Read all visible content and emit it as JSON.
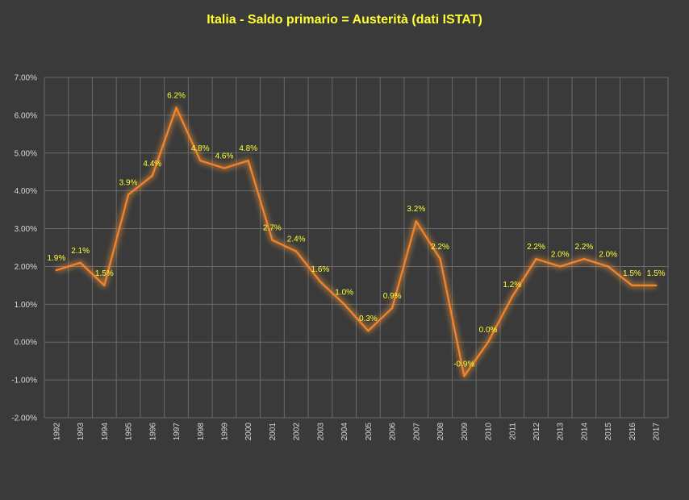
{
  "colors": {
    "background": "#3a3a3a",
    "title": "#ffff33",
    "line": "#f5842a",
    "glow": "#ff9a3c",
    "data_label": "#ffff33",
    "tick": "#d9d9d9",
    "grid": "#6a6a6a"
  },
  "chart_data": {
    "type": "line",
    "title": "Italia - Saldo primario = Austerità (dati ISTAT)",
    "xlabel": "",
    "ylabel": "",
    "x": [
      "1992",
      "1993",
      "1994",
      "1995",
      "1996",
      "1997",
      "1998",
      "1999",
      "2000",
      "2001",
      "2002",
      "2003",
      "2004",
      "2005",
      "2006",
      "2007",
      "2008",
      "2009",
      "2010",
      "2011",
      "2012",
      "2013",
      "2014",
      "2015",
      "2016",
      "2017"
    ],
    "series": [
      {
        "values": [
          1.9,
          2.1,
          1.5,
          3.9,
          4.4,
          6.2,
          4.8,
          4.6,
          4.8,
          2.7,
          2.4,
          1.6,
          1.0,
          0.3,
          0.9,
          3.2,
          2.2,
          -0.9,
          0.0,
          1.2,
          2.2,
          2.0,
          2.2,
          2.0,
          1.5,
          1.5
        ],
        "labels": [
          "1.9%",
          "2.1%",
          "1.5%",
          "3.9%",
          "4.4%",
          "6.2%",
          "4.8%",
          "4.6%",
          "4.8%",
          "2.7%",
          "2.4%",
          "1.6%",
          "1.0%",
          "0.3%",
          "0.9%",
          "3.2%",
          "2.2%",
          "-0.9%",
          "0.0%",
          "1.2%",
          "2.2%",
          "2.0%",
          "2.2%",
          "2.0%",
          "1.5%",
          "1.5%"
        ]
      }
    ],
    "ylim": [
      -2,
      7
    ],
    "yticks": [
      7,
      6,
      5,
      4,
      3,
      2,
      1,
      0,
      -1,
      -2
    ],
    "ytick_labels": [
      "7.00%",
      "6.00%",
      "5.00%",
      "4.00%",
      "3.00%",
      "2.00%",
      "1.00%",
      "0.00%",
      "-1.00%",
      "-2.00%"
    ],
    "grid": true,
    "legend": "none"
  }
}
